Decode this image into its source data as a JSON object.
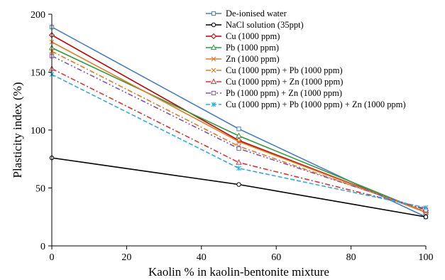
{
  "chart_data": {
    "type": "line",
    "xlabel": "Kaolin % in kaolin-bentonite mixture",
    "ylabel": "Plasticity index (%)",
    "xlim": [
      0,
      100
    ],
    "ylim": [
      0,
      200
    ],
    "xticks": [
      0,
      20,
      40,
      60,
      80,
      100
    ],
    "yticks": [
      0,
      50,
      100,
      150,
      200
    ],
    "grid": false,
    "legend_position": "top-right",
    "x": [
      0,
      50,
      100
    ],
    "series": [
      {
        "name": "De-ionised water",
        "values": [
          189,
          101,
          25
        ],
        "color": "#4a7fc1",
        "dash": "solid",
        "marker": "square"
      },
      {
        "name": "NaCl solution (35ppt)",
        "values": [
          76,
          53,
          25
        ],
        "color": "#000000",
        "dash": "solid",
        "marker": "circle"
      },
      {
        "name": "Cu (1000 ppm)",
        "values": [
          182,
          91,
          29
        ],
        "color": "#c00000",
        "dash": "solid",
        "marker": "diamond"
      },
      {
        "name": "Pb (1000 ppm)",
        "values": [
          171,
          95,
          29
        ],
        "color": "#2e9e3a",
        "dash": "solid",
        "marker": "triangle"
      },
      {
        "name": "Zn (1000 ppm)",
        "values": [
          176,
          90,
          29
        ],
        "color": "#e07b28",
        "dash": "solid",
        "marker": "x"
      },
      {
        "name": "Cu (1000 ppm) + Pb (1000 ppm)",
        "values": [
          168,
          86,
          30
        ],
        "color": "#e07b28",
        "dash": "dashdot",
        "marker": "x"
      },
      {
        "name": "Cu (1000 ppm) + Zn (1000 ppm)",
        "values": [
          153,
          72,
          32
        ],
        "color": "#e03030",
        "dash": "dashdot",
        "marker": "triangle"
      },
      {
        "name": "Pb (1000 ppm) + Zn (1000 ppm)",
        "values": [
          164,
          84,
          31
        ],
        "color": "#7f55b0",
        "dash": "dashdotdot",
        "marker": "square"
      },
      {
        "name": "Cu (1000 ppm) + Pb (1000 ppm) + Zn (1000 ppm)",
        "values": [
          148,
          67,
          33
        ],
        "color": "#2aaee0",
        "dash": "dashed",
        "marker": "asterisk"
      }
    ]
  }
}
